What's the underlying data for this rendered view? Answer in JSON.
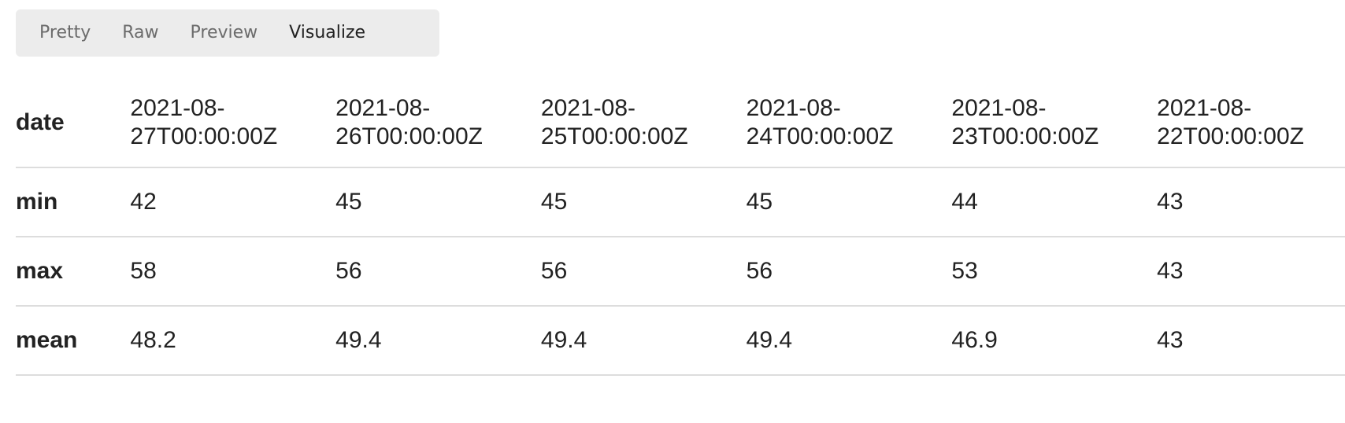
{
  "tabs": [
    {
      "label": "Pretty",
      "active": false
    },
    {
      "label": "Raw",
      "active": false
    },
    {
      "label": "Preview",
      "active": false
    },
    {
      "label": "Visualize",
      "active": true
    }
  ],
  "table": {
    "row_headers": {
      "date": "date",
      "min": "min",
      "max": "max",
      "mean": "mean"
    },
    "columns": [
      {
        "date_line1": "2021-08-",
        "date_line2": "27T00:00:00Z",
        "min": "42",
        "max": "58",
        "mean": "48.2"
      },
      {
        "date_line1": "2021-08-",
        "date_line2": "26T00:00:00Z",
        "min": "45",
        "max": "56",
        "mean": "49.4"
      },
      {
        "date_line1": "2021-08-",
        "date_line2": "25T00:00:00Z",
        "min": "45",
        "max": "56",
        "mean": "49.4"
      },
      {
        "date_line1": "2021-08-",
        "date_line2": "24T00:00:00Z",
        "min": "45",
        "max": "56",
        "mean": "49.4"
      },
      {
        "date_line1": "2021-08-",
        "date_line2": "23T00:00:00Z",
        "min": "44",
        "max": "53",
        "mean": "46.9"
      },
      {
        "date_line1": "2021-08-",
        "date_line2": "22T00:00:00Z",
        "min": "43",
        "max": "43",
        "mean": "43"
      }
    ]
  }
}
